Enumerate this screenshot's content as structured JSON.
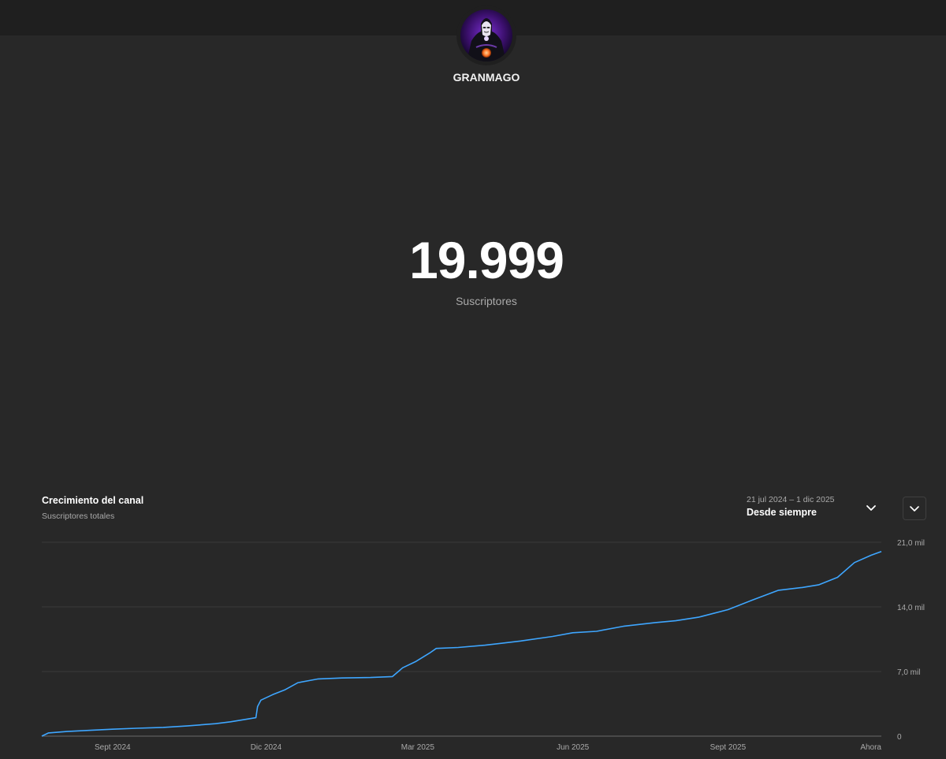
{
  "channel": {
    "name": "GRANMAGO",
    "subscriber_count": "19.999",
    "subscriber_label": "Suscriptores"
  },
  "growth_panel": {
    "title": "Crecimiento del canal",
    "subtitle": "Suscriptores totales",
    "date_range": "21 jul 2024 – 1 dic 2025",
    "range_label": "Desde siempre"
  },
  "colors": {
    "line": "#3ea6ff",
    "background": "#282828",
    "topbar": "#1f1f1f",
    "grid": "#3a3a3a"
  },
  "icons": {
    "range_dropdown": "chevron-down-icon",
    "collapse": "chevron-down-icon",
    "avatar": "hooded-wizard-avatar"
  },
  "chart_data": {
    "type": "line",
    "title": "Crecimiento del canal",
    "subtitle": "Suscriptores totales",
    "xlabel": "",
    "ylabel": "",
    "x_ticks": [
      "Sept 2024",
      "Dic 2024",
      "Mar 2025",
      "Jun 2025",
      "Sept 2025",
      "Ahora"
    ],
    "y_ticks": [
      "0",
      "7,0 mil",
      "14,0 mil",
      "21,0 mil"
    ],
    "ylim": [
      0,
      21000
    ],
    "xlim": [
      "2024-07-21",
      "2025-12-01"
    ],
    "grid": true,
    "legend": "none",
    "series": [
      {
        "points": [
          [
            "2024-07-21",
            0
          ],
          [
            "2024-07-25",
            350
          ],
          [
            "2024-08-05",
            500
          ],
          [
            "2024-08-20",
            650
          ],
          [
            "2024-09-01",
            750
          ],
          [
            "2024-09-15",
            850
          ],
          [
            "2024-10-01",
            950
          ],
          [
            "2024-10-15",
            1100
          ],
          [
            "2024-11-01",
            1350
          ],
          [
            "2024-11-10",
            1550
          ],
          [
            "2024-11-20",
            1850
          ],
          [
            "2024-11-25",
            2000
          ],
          [
            "2024-11-26",
            3200
          ],
          [
            "2024-11-28",
            3900
          ],
          [
            "2024-12-05",
            4500
          ],
          [
            "2024-12-12",
            5000
          ],
          [
            "2024-12-20",
            5800
          ],
          [
            "2025-01-01",
            6200
          ],
          [
            "2025-01-15",
            6300
          ],
          [
            "2025-02-01",
            6350
          ],
          [
            "2025-02-14",
            6450
          ],
          [
            "2025-02-20",
            7400
          ],
          [
            "2025-02-28",
            8100
          ],
          [
            "2025-03-08",
            9000
          ],
          [
            "2025-03-12",
            9500
          ],
          [
            "2025-03-25",
            9600
          ],
          [
            "2025-04-10",
            9850
          ],
          [
            "2025-05-01",
            10300
          ],
          [
            "2025-05-20",
            10800
          ],
          [
            "2025-06-01",
            11200
          ],
          [
            "2025-06-15",
            11350
          ],
          [
            "2025-07-01",
            11900
          ],
          [
            "2025-07-20",
            12300
          ],
          [
            "2025-08-01",
            12500
          ],
          [
            "2025-08-15",
            12900
          ],
          [
            "2025-09-01",
            13700
          ],
          [
            "2025-09-15",
            14700
          ],
          [
            "2025-10-01",
            15800
          ],
          [
            "2025-10-15",
            16100
          ],
          [
            "2025-10-25",
            16400
          ],
          [
            "2025-11-05",
            17200
          ],
          [
            "2025-11-15",
            18800
          ],
          [
            "2025-11-25",
            19600
          ],
          [
            "2025-12-01",
            19999
          ]
        ]
      }
    ]
  }
}
